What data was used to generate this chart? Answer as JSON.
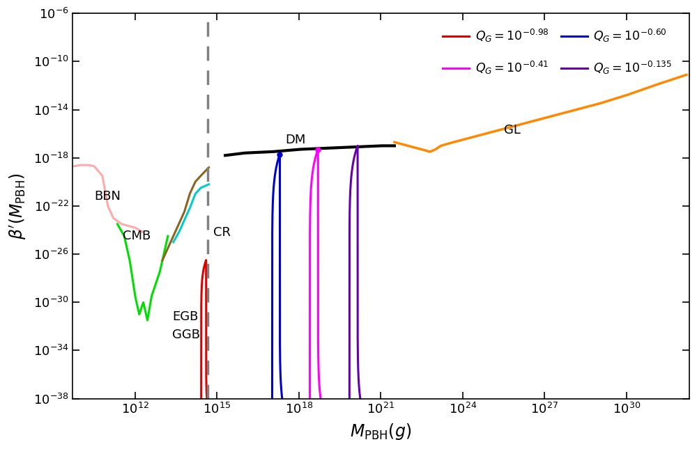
{
  "xlim_log": [
    9.7,
    32.3
  ],
  "ylim_log": [
    -38,
    -6
  ],
  "dashed_vline_x_log": 14.65,
  "bbn_color": "#ffaaaa",
  "cmb_color": "#00dd00",
  "brown_color": "#8B6420",
  "cyan_color": "#00cccc",
  "black_dm_color": "#000000",
  "orange_gl_color": "#ff8800",
  "red_spike_color": "#dd0000",
  "blue_spike_color": "#0000cc",
  "magenta_spike_color": "#ff00ff",
  "purple_spike_color": "#6600aa",
  "legend_colors": [
    "#dd0000",
    "#ff00ff",
    "#0000cc",
    "#6600aa"
  ],
  "legend_labels": [
    "$Q_G=10^{-0.98}$",
    "$Q_G=10^{-0.41}$",
    "$Q_G=10^{-0.60}$",
    "$Q_G=10^{-0.135}$"
  ]
}
